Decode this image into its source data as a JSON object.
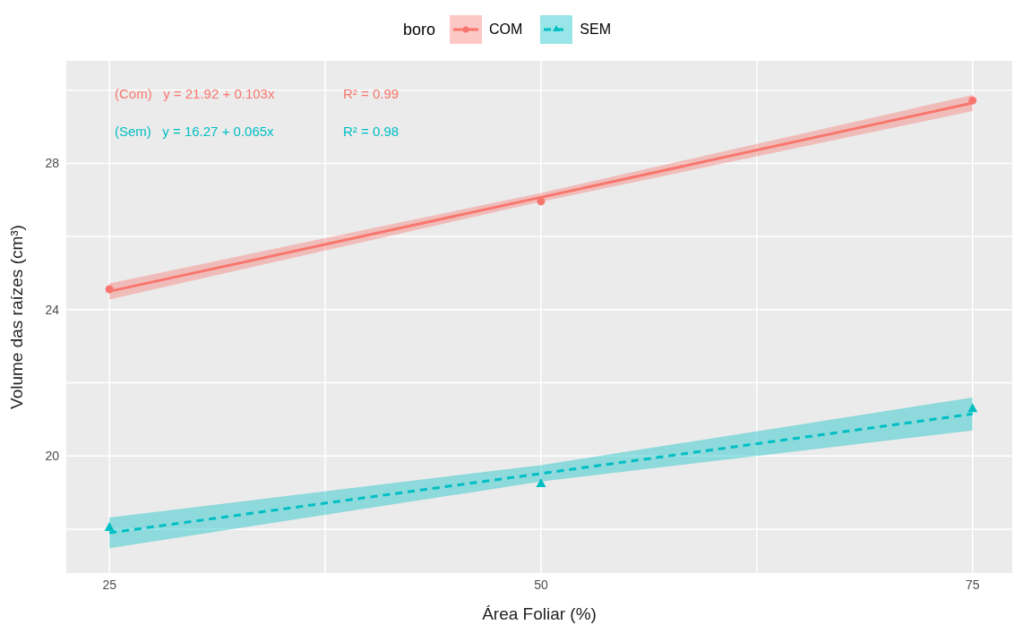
{
  "chart_data": {
    "type": "scatter",
    "xlabel": "Área Foliar (%)",
    "ylabel": "Volume das raízes (cm³)",
    "legend_title": "boro",
    "legend": "top",
    "grid": true,
    "xlim": [
      22.5,
      77.3
    ],
    "xticks": [
      25,
      {
        "value": 37.5,
        "label": null
      },
      50,
      {
        "value": 62.5,
        "label": null
      },
      75
    ],
    "ylim": [
      16.8,
      30.8
    ],
    "yticks": [
      {
        "value": 18,
        "label": null
      },
      20,
      {
        "value": 22,
        "label": null
      },
      24,
      {
        "value": 26,
        "label": null
      },
      28,
      {
        "value": 30,
        "label": null
      }
    ],
    "series": [
      {
        "name": "COM",
        "type": "scatter",
        "marker": "circle",
        "color": "#f8766d",
        "x": [
          25,
          50,
          75
        ],
        "values": [
          24.56,
          26.96,
          29.72
        ]
      },
      {
        "type": "line",
        "line_style": "solid",
        "color": "#f8766d",
        "x": [
          25,
          50,
          75
        ],
        "values": [
          24.5,
          27.07,
          29.65
        ],
        "lower": [
          24.28,
          26.95,
          29.43
        ],
        "upper": [
          24.72,
          27.19,
          29.87
        ]
      },
      {
        "name": "SEM",
        "type": "scatter",
        "marker": "triangle",
        "color": "#00bfc4",
        "x": [
          25,
          50,
          75
        ],
        "values": [
          18.07,
          19.27,
          21.32
        ]
      },
      {
        "type": "line",
        "line_style": "dashed",
        "color": "#00bfc4",
        "x": [
          25,
          50,
          75
        ],
        "values": [
          17.9,
          19.52,
          21.15
        ],
        "lower": [
          17.48,
          19.3,
          20.7
        ],
        "upper": [
          18.32,
          19.75,
          21.6
        ]
      }
    ],
    "annotations": [
      "(Com)   y = 21.92 + 0.103x",
      "R² = 0.99",
      "(Sem)   y = 16.27 + 0.065x",
      "R² = 0.98"
    ]
  }
}
